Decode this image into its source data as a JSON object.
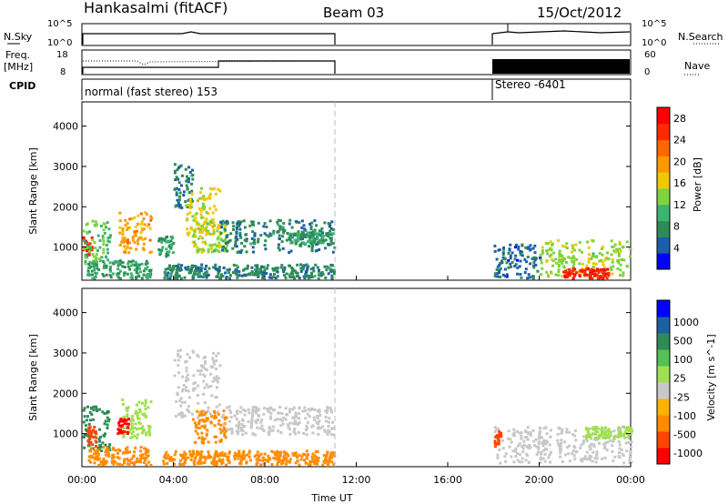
{
  "header": {
    "station": "Hankasalmi (fitACF)",
    "beam": "Beam 03",
    "date": "15/Oct/2012"
  },
  "left_labels": {
    "nsky": "N.Sky",
    "freq": "Freq.",
    "mhz": "[MHz]",
    "cpid": "CPID"
  },
  "right_labels": {
    "nsearch": "N.Search",
    "nave": "Nave"
  },
  "nsky_panel": {
    "ticks_left": [
      "10^5",
      "10^0"
    ],
    "ticks_right": [
      "10^5",
      "10^0"
    ]
  },
  "freq_panel": {
    "ticks_left": [
      "18",
      "8"
    ],
    "ticks_right": [
      "60",
      "0"
    ]
  },
  "cpid_panel": {
    "mode1": "normal (fast stereo) 153",
    "mode2": "Stereo -6401"
  },
  "colors": {
    "power": [
      "#0000ff",
      "#1b5fa8",
      "#2e8b57",
      "#3cb371",
      "#7fd33c",
      "#f0c800",
      "#ff9900",
      "#ff6600",
      "#ff2a00",
      "#ff0000"
    ],
    "velocity": [
      "#ff0000",
      "#ff4500",
      "#ff8c00",
      "#ffb300",
      "#c8c8c8",
      "#a0e050",
      "#55c055",
      "#2e8b57",
      "#1e5fa0",
      "#0000ff"
    ],
    "missing": "#ffffff"
  },
  "chart_data": [
    {
      "type": "heatmap",
      "name": "power",
      "xlabel": "",
      "ylabel": "Slant Range [km]",
      "x_ticks": [
        "00:00",
        "04:00",
        "08:00",
        "12:00",
        "16:00",
        "20:00",
        "00:00"
      ],
      "xlim_hours": [
        0,
        24
      ],
      "y_ticks": [
        1000,
        2000,
        3000,
        4000
      ],
      "ylim": [
        180,
        4600
      ],
      "colorbar_label": "Power [dB]",
      "colorbar_ticks": [
        4,
        8,
        12,
        16,
        20,
        24,
        28
      ],
      "colorbar_range": [
        0,
        30
      ],
      "blobs": [
        {
          "t0": 0.0,
          "t1": 0.4,
          "r0": 800,
          "r1": 1300,
          "value": 28
        },
        {
          "t0": 0.0,
          "t1": 1.2,
          "r0": 600,
          "r1": 1700,
          "value": 12
        },
        {
          "t0": 1.6,
          "t1": 3.0,
          "r0": 900,
          "r1": 1900,
          "value": 20
        },
        {
          "t0": 0.2,
          "t1": 3.0,
          "r0": 250,
          "r1": 700,
          "value": 8
        },
        {
          "t0": 3.3,
          "t1": 4.0,
          "r0": 800,
          "r1": 1300,
          "value": 8
        },
        {
          "t0": 4.0,
          "t1": 4.8,
          "r0": 2000,
          "r1": 3100,
          "value": 6
        },
        {
          "t0": 4.5,
          "t1": 6.0,
          "r0": 1300,
          "r1": 2500,
          "value": 16
        },
        {
          "t0": 4.8,
          "t1": 6.3,
          "r0": 900,
          "r1": 1700,
          "value": 14
        },
        {
          "t0": 6.0,
          "t1": 11.0,
          "r0": 900,
          "r1": 1700,
          "value": 6
        },
        {
          "t0": 9.0,
          "t1": 11.0,
          "r0": 1100,
          "r1": 1400,
          "value": 8
        },
        {
          "t0": 3.5,
          "t1": 11.0,
          "r0": 250,
          "r1": 600,
          "value": 6
        },
        {
          "t0": 18.0,
          "t1": 20.0,
          "r0": 250,
          "r1": 1100,
          "value": 4
        },
        {
          "t0": 20.0,
          "t1": 24.0,
          "r0": 300,
          "r1": 1200,
          "value": 14
        },
        {
          "t0": 21.0,
          "t1": 23.0,
          "r0": 250,
          "r1": 500,
          "value": 28
        }
      ]
    },
    {
      "type": "heatmap",
      "name": "velocity",
      "xlabel": "Time UT",
      "ylabel": "Slant Range [km]",
      "x_ticks": [
        "00:00",
        "04:00",
        "08:00",
        "12:00",
        "16:00",
        "20:00",
        "00:00"
      ],
      "xlim_hours": [
        0,
        24
      ],
      "y_ticks": [
        1000,
        2000,
        3000,
        4000
      ],
      "ylim": [
        180,
        4600
      ],
      "colorbar_label": "Velocity [m s^-1]",
      "colorbar_ticks": [
        "1000",
        "500",
        "100",
        "25",
        "-25",
        "-100",
        "-500",
        "-1000"
      ],
      "blobs": [
        {
          "t0": 0.0,
          "t1": 1.2,
          "r0": 600,
          "r1": 1700,
          "value": 500
        },
        {
          "t0": 0.2,
          "t1": 0.6,
          "r0": 700,
          "r1": 1200,
          "value": -500
        },
        {
          "t0": 1.6,
          "t1": 3.0,
          "r0": 900,
          "r1": 1900,
          "value": 100
        },
        {
          "t0": 1.5,
          "t1": 2.0,
          "r0": 1000,
          "r1": 1400,
          "value": -1000
        },
        {
          "t0": 0.2,
          "t1": 3.0,
          "r0": 250,
          "r1": 700,
          "value": -100
        },
        {
          "t0": 4.0,
          "t1": 6.0,
          "r0": 1400,
          "r1": 3100,
          "value": 0
        },
        {
          "t0": 4.8,
          "t1": 6.3,
          "r0": 800,
          "r1": 1600,
          "value": -100
        },
        {
          "t0": 6.0,
          "t1": 11.0,
          "r0": 1000,
          "r1": 1700,
          "value": 0
        },
        {
          "t0": 3.5,
          "t1": 11.0,
          "r0": 250,
          "r1": 600,
          "value": -100
        },
        {
          "t0": 18.0,
          "t1": 24.0,
          "r0": 300,
          "r1": 1200,
          "value": 0
        },
        {
          "t0": 22.0,
          "t1": 24.0,
          "r0": 900,
          "r1": 1200,
          "value": 100
        },
        {
          "t0": 18.0,
          "t1": 18.3,
          "r0": 700,
          "r1": 1100,
          "value": -500
        }
      ]
    }
  ]
}
